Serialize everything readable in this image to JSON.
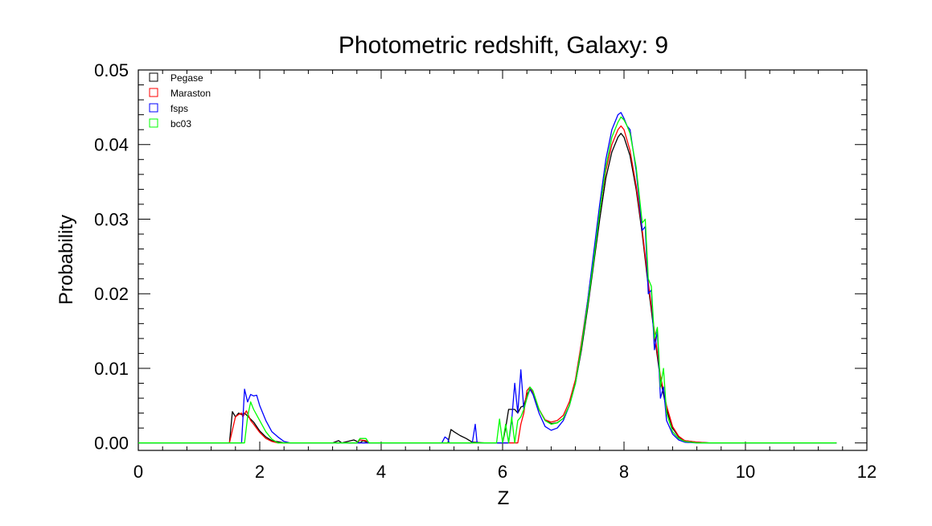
{
  "chart_data": {
    "type": "line",
    "title": "Photometric redshift, Galaxy: 9",
    "xlabel": "Z",
    "ylabel": "Probability",
    "xlim": [
      0,
      12
    ],
    "ylim": [
      -0.001,
      0.05
    ],
    "x_ticks": [
      "0",
      "2",
      "4",
      "6",
      "8",
      "10",
      "12"
    ],
    "y_ticks": [
      "0.00",
      "0.01",
      "0.02",
      "0.03",
      "0.04",
      "0.05"
    ],
    "legend_position": "top-left",
    "series": [
      {
        "name": "Pegase",
        "color": "#000000",
        "points": [
          [
            0,
            0
          ],
          [
            1.5,
            0
          ],
          [
            1.55,
            0.0042
          ],
          [
            1.6,
            0.0035
          ],
          [
            1.65,
            0.004
          ],
          [
            1.7,
            0.0038
          ],
          [
            1.75,
            0.004
          ],
          [
            1.8,
            0.0036
          ],
          [
            1.9,
            0.0028
          ],
          [
            2.0,
            0.0016
          ],
          [
            2.1,
            0.0008
          ],
          [
            2.2,
            0.0003
          ],
          [
            2.4,
            0
          ],
          [
            3.2,
            0
          ],
          [
            3.3,
            0.0003
          ],
          [
            3.35,
            0
          ],
          [
            3.55,
            0.0004
          ],
          [
            3.65,
            0
          ],
          [
            3.7,
            0.0003
          ],
          [
            3.8,
            0
          ],
          [
            5.1,
            0
          ],
          [
            5.15,
            0.0018
          ],
          [
            5.2,
            0.0015
          ],
          [
            5.3,
            0.001
          ],
          [
            5.4,
            0.0006
          ],
          [
            5.5,
            0.0001
          ],
          [
            5.7,
            0
          ],
          [
            6.0,
            0
          ],
          [
            6.05,
            0.002
          ],
          [
            6.1,
            0.0045
          ],
          [
            6.2,
            0.0045
          ],
          [
            6.25,
            0.004
          ],
          [
            6.3,
            0.0048
          ],
          [
            6.35,
            0.005
          ],
          [
            6.4,
            0.0065
          ],
          [
            6.45,
            0.0072
          ],
          [
            6.5,
            0.0068
          ],
          [
            6.6,
            0.0045
          ],
          [
            6.7,
            0.003
          ],
          [
            6.8,
            0.0026
          ],
          [
            6.9,
            0.0027
          ],
          [
            7.0,
            0.0033
          ],
          [
            7.1,
            0.005
          ],
          [
            7.2,
            0.008
          ],
          [
            7.3,
            0.0125
          ],
          [
            7.4,
            0.018
          ],
          [
            7.5,
            0.024
          ],
          [
            7.6,
            0.03
          ],
          [
            7.7,
            0.0355
          ],
          [
            7.8,
            0.039
          ],
          [
            7.9,
            0.041
          ],
          [
            7.95,
            0.0415
          ],
          [
            8.0,
            0.041
          ],
          [
            8.1,
            0.0385
          ],
          [
            8.2,
            0.034
          ],
          [
            8.3,
            0.028
          ],
          [
            8.4,
            0.021
          ],
          [
            8.5,
            0.0145
          ],
          [
            8.6,
            0.0085
          ],
          [
            8.7,
            0.0045
          ],
          [
            8.8,
            0.002
          ],
          [
            8.9,
            0.0008
          ],
          [
            9.0,
            0.0003
          ],
          [
            9.2,
            0.0001
          ],
          [
            9.4,
            0
          ],
          [
            11.5,
            0
          ]
        ]
      },
      {
        "name": "Maraston",
        "color": "#ff0000",
        "points": [
          [
            0,
            0
          ],
          [
            1.5,
            0
          ],
          [
            1.6,
            0.0035
          ],
          [
            1.65,
            0.0038
          ],
          [
            1.7,
            0.004
          ],
          [
            1.72,
            0.0035
          ],
          [
            1.78,
            0.0043
          ],
          [
            1.85,
            0.003
          ],
          [
            1.9,
            0.0025
          ],
          [
            2.0,
            0.0014
          ],
          [
            2.1,
            0.0006
          ],
          [
            2.2,
            0.0002
          ],
          [
            2.3,
            0
          ],
          [
            3.6,
            0
          ],
          [
            3.65,
            0.0004
          ],
          [
            3.75,
            0.0003
          ],
          [
            3.8,
            0
          ],
          [
            6.25,
            0
          ],
          [
            6.3,
            0.0025
          ],
          [
            6.35,
            0.004
          ],
          [
            6.4,
            0.007
          ],
          [
            6.45,
            0.0075
          ],
          [
            6.5,
            0.0068
          ],
          [
            6.6,
            0.0045
          ],
          [
            6.7,
            0.0031
          ],
          [
            6.8,
            0.0028
          ],
          [
            6.9,
            0.003
          ],
          [
            7.0,
            0.0037
          ],
          [
            7.1,
            0.0055
          ],
          [
            7.2,
            0.0085
          ],
          [
            7.3,
            0.0135
          ],
          [
            7.4,
            0.019
          ],
          [
            7.5,
            0.025
          ],
          [
            7.6,
            0.031
          ],
          [
            7.7,
            0.0365
          ],
          [
            7.8,
            0.04
          ],
          [
            7.9,
            0.042
          ],
          [
            7.95,
            0.0425
          ],
          [
            8.0,
            0.042
          ],
          [
            8.1,
            0.0392
          ],
          [
            8.2,
            0.0345
          ],
          [
            8.3,
            0.0285
          ],
          [
            8.4,
            0.0215
          ],
          [
            8.5,
            0.015
          ],
          [
            8.6,
            0.009
          ],
          [
            8.7,
            0.005
          ],
          [
            8.8,
            0.0022
          ],
          [
            8.9,
            0.0009
          ],
          [
            9.0,
            0.0003
          ],
          [
            9.2,
            0.0001
          ],
          [
            9.4,
            0
          ],
          [
            11.5,
            0
          ]
        ]
      },
      {
        "name": "fsps",
        "color": "#0000ff",
        "points": [
          [
            0,
            0
          ],
          [
            1.7,
            0
          ],
          [
            1.75,
            0.0072
          ],
          [
            1.8,
            0.0055
          ],
          [
            1.85,
            0.0065
          ],
          [
            1.9,
            0.0063
          ],
          [
            1.95,
            0.0064
          ],
          [
            2.0,
            0.005
          ],
          [
            2.1,
            0.003
          ],
          [
            2.2,
            0.0015
          ],
          [
            2.3,
            0.0008
          ],
          [
            2.4,
            0.0002
          ],
          [
            2.5,
            0
          ],
          [
            5.0,
            0
          ],
          [
            5.05,
            0.0008
          ],
          [
            5.1,
            0.0005
          ],
          [
            5.12,
            0
          ],
          [
            5.5,
            0
          ],
          [
            5.55,
            0.0025
          ],
          [
            5.58,
            0
          ],
          [
            6.1,
            0
          ],
          [
            6.15,
            0.003
          ],
          [
            6.2,
            0.008
          ],
          [
            6.25,
            0.004
          ],
          [
            6.3,
            0.0098
          ],
          [
            6.35,
            0.0045
          ],
          [
            6.4,
            0.006
          ],
          [
            6.45,
            0.0072
          ],
          [
            6.5,
            0.0065
          ],
          [
            6.6,
            0.004
          ],
          [
            6.7,
            0.0022
          ],
          [
            6.8,
            0.0017
          ],
          [
            6.9,
            0.002
          ],
          [
            7.0,
            0.003
          ],
          [
            7.1,
            0.005
          ],
          [
            7.2,
            0.008
          ],
          [
            7.3,
            0.013
          ],
          [
            7.4,
            0.019
          ],
          [
            7.5,
            0.0255
          ],
          [
            7.6,
            0.032
          ],
          [
            7.7,
            0.038
          ],
          [
            7.8,
            0.042
          ],
          [
            7.9,
            0.044
          ],
          [
            7.95,
            0.0443
          ],
          [
            8.0,
            0.0435
          ],
          [
            8.05,
            0.0425
          ],
          [
            8.1,
            0.042
          ],
          [
            8.2,
            0.0365
          ],
          [
            8.3,
            0.0285
          ],
          [
            8.35,
            0.029
          ],
          [
            8.4,
            0.02
          ],
          [
            8.45,
            0.0205
          ],
          [
            8.5,
            0.0125
          ],
          [
            8.55,
            0.015
          ],
          [
            8.6,
            0.006
          ],
          [
            8.65,
            0.0075
          ],
          [
            8.7,
            0.003
          ],
          [
            8.8,
            0.0012
          ],
          [
            8.9,
            0.0004
          ],
          [
            9.0,
            0.0001
          ],
          [
            9.2,
            0
          ],
          [
            11.5,
            0
          ]
        ]
      },
      {
        "name": "bc03",
        "color": "#00ff00",
        "points": [
          [
            0,
            0
          ],
          [
            1.75,
            0
          ],
          [
            1.8,
            0.0035
          ],
          [
            1.85,
            0.0055
          ],
          [
            1.9,
            0.0045
          ],
          [
            2.0,
            0.003
          ],
          [
            2.1,
            0.0015
          ],
          [
            2.2,
            0.0005
          ],
          [
            2.3,
            0
          ],
          [
            3.6,
            0
          ],
          [
            3.65,
            0.0006
          ],
          [
            3.75,
            0.0006
          ],
          [
            3.8,
            0
          ],
          [
            5.9,
            0
          ],
          [
            5.95,
            0.0032
          ],
          [
            6.0,
            0
          ],
          [
            6.05,
            0.0025
          ],
          [
            6.1,
            0
          ],
          [
            6.15,
            0.0035
          ],
          [
            6.2,
            0
          ],
          [
            6.25,
            0.003
          ],
          [
            6.3,
            0.0035
          ],
          [
            6.35,
            0.0045
          ],
          [
            6.4,
            0.006
          ],
          [
            6.45,
            0.0075
          ],
          [
            6.5,
            0.007
          ],
          [
            6.6,
            0.0045
          ],
          [
            6.7,
            0.003
          ],
          [
            6.8,
            0.0025
          ],
          [
            6.9,
            0.0027
          ],
          [
            7.0,
            0.0033
          ],
          [
            7.1,
            0.005
          ],
          [
            7.2,
            0.008
          ],
          [
            7.3,
            0.013
          ],
          [
            7.4,
            0.0185
          ],
          [
            7.5,
            0.0245
          ],
          [
            7.6,
            0.031
          ],
          [
            7.7,
            0.037
          ],
          [
            7.8,
            0.041
          ],
          [
            7.9,
            0.043
          ],
          [
            7.95,
            0.0437
          ],
          [
            8.0,
            0.0433
          ],
          [
            8.05,
            0.0425
          ],
          [
            8.1,
            0.0415
          ],
          [
            8.2,
            0.037
          ],
          [
            8.3,
            0.0295
          ],
          [
            8.35,
            0.03
          ],
          [
            8.4,
            0.022
          ],
          [
            8.45,
            0.021
          ],
          [
            8.5,
            0.014
          ],
          [
            8.55,
            0.0155
          ],
          [
            8.6,
            0.0075
          ],
          [
            8.65,
            0.01
          ],
          [
            8.7,
            0.004
          ],
          [
            8.8,
            0.0015
          ],
          [
            8.9,
            0.0006
          ],
          [
            9.0,
            0.0002
          ],
          [
            9.2,
            0
          ],
          [
            11.5,
            0
          ]
        ]
      }
    ]
  }
}
